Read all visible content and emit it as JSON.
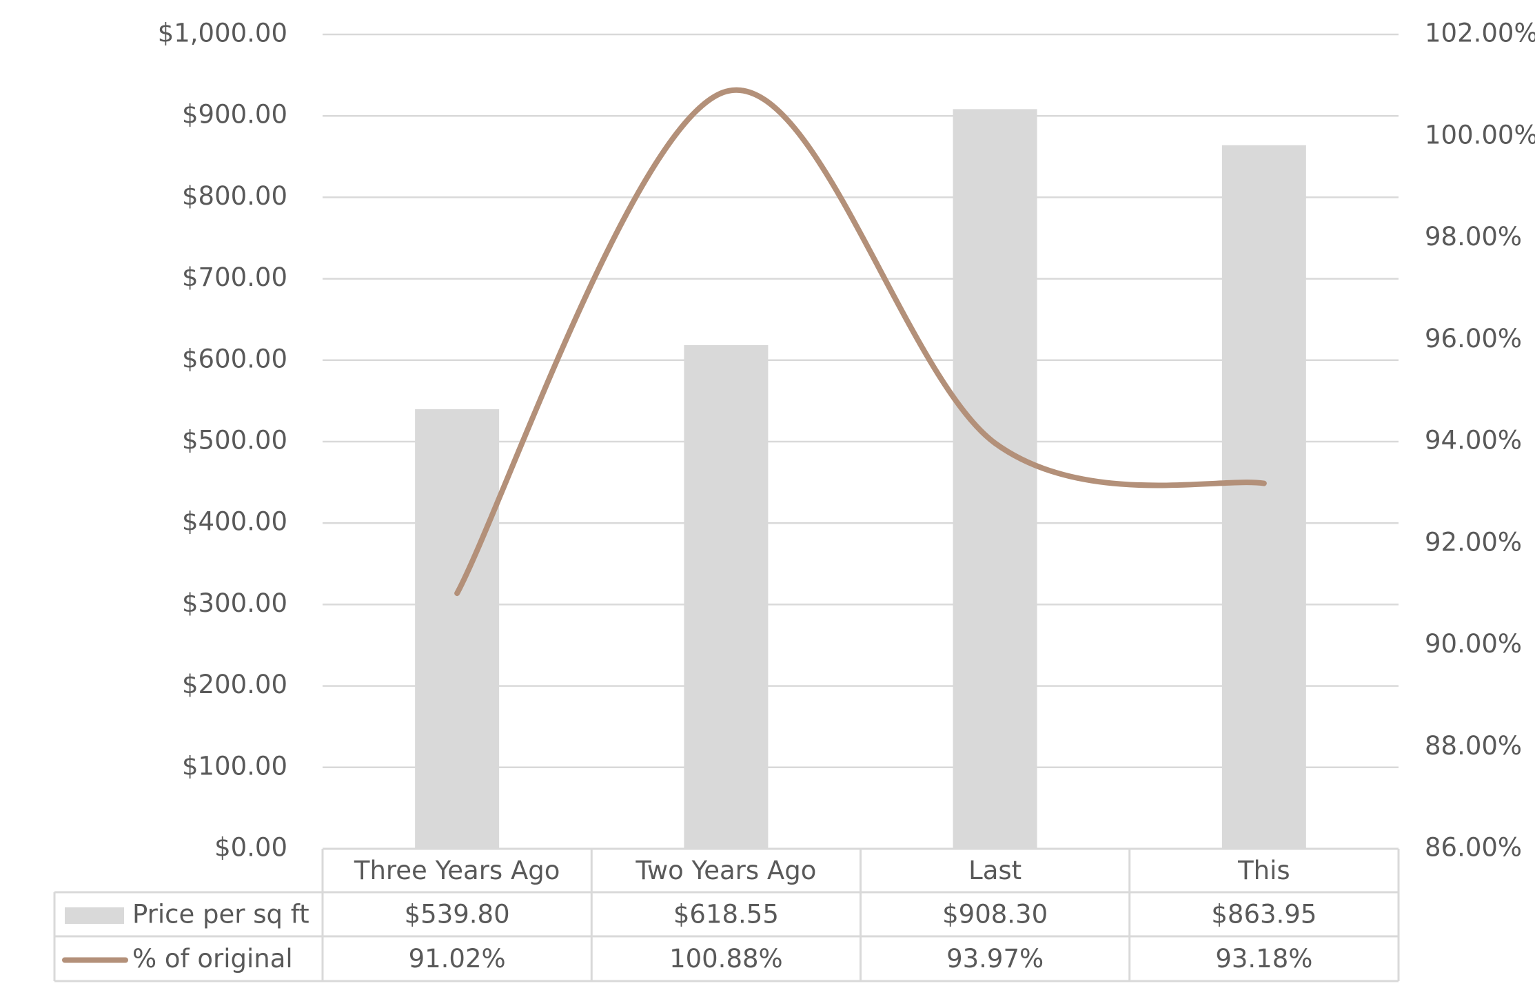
{
  "chart_data": {
    "type": "bar-line",
    "categories": [
      "Three Years Ago",
      "Two Years Ago",
      "Last",
      "This"
    ],
    "series": [
      {
        "name": "Price per sq ft",
        "type": "bar",
        "color": "#d9d9d9",
        "values": [
          539.8,
          618.55,
          908.3,
          863.95
        ],
        "value_labels": [
          "$539.80",
          "$618.55",
          "$908.30",
          "$863.95"
        ]
      },
      {
        "name": "% of original",
        "type": "line",
        "axis": "y2",
        "smooth": true,
        "color": "#b39079",
        "values": [
          91.02,
          100.88,
          93.97,
          93.18
        ],
        "value_labels": [
          "91.02%",
          "100.88%",
          "93.97%",
          "93.18%"
        ]
      }
    ],
    "ylim": [
      0,
      1000
    ],
    "yticks": [
      {
        "value": 0,
        "label": "$0.00"
      },
      {
        "value": 100,
        "label": "$100.00"
      },
      {
        "value": 200,
        "label": "$200.00"
      },
      {
        "value": 300,
        "label": "$300.00"
      },
      {
        "value": 400,
        "label": "$400.00"
      },
      {
        "value": 500,
        "label": "$500.00"
      },
      {
        "value": 600,
        "label": "$600.00"
      },
      {
        "value": 700,
        "label": "$700.00"
      },
      {
        "value": 800,
        "label": "$800.00"
      },
      {
        "value": 900,
        "label": "$900.00"
      },
      {
        "value": 1000,
        "label": "$1,000.00"
      }
    ],
    "y2lim": [
      86,
      102
    ],
    "y2ticks": [
      {
        "value": 86,
        "label": "86.00%"
      },
      {
        "value": 88,
        "label": "88.00%"
      },
      {
        "value": 90,
        "label": "90.00%"
      },
      {
        "value": 92,
        "label": "92.00%"
      },
      {
        "value": 94,
        "label": "94.00%"
      },
      {
        "value": 96,
        "label": "96.00%"
      },
      {
        "value": 98,
        "label": "98.00%"
      },
      {
        "value": 100,
        "label": "100.00%"
      },
      {
        "value": 102,
        "label": "102.00%"
      }
    ],
    "grid": true,
    "data_table": true
  }
}
